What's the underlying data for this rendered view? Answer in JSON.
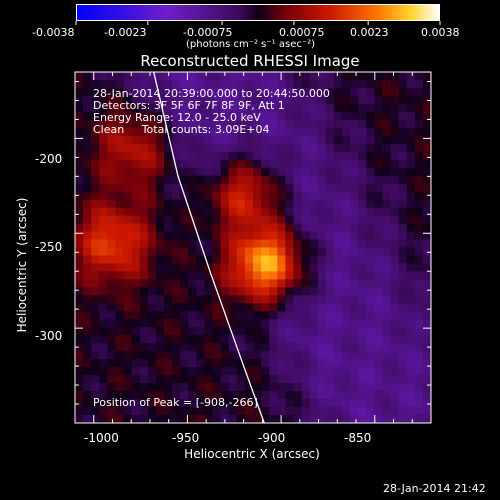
{
  "chart_data": {
    "type": "heatmap",
    "title": "Reconstructed RHESSI Image",
    "xlabel": "Heliocentric X (arcsec)",
    "ylabel": "Heliocentric Y (arcsec)",
    "xlim": [
      -1010,
      -820
    ],
    "ylim": [
      -350,
      -165
    ],
    "x_ticks": [
      -1000,
      -950,
      -900,
      -850
    ],
    "y_ticks": [
      -200,
      -250,
      -300
    ],
    "colorbar": {
      "min": -0.0038,
      "max": 0.0038,
      "ticks": [
        "-0.0038",
        "-0.0023",
        "-0.00075",
        "0.00075",
        "0.0023",
        "0.0038"
      ],
      "units": "(photons cm⁻² s⁻¹ asec⁻²)"
    },
    "info_lines": [
      "28-Jan-2014 20:39:00.000 to 20:44:50.000",
      "Detectors: 3F 5F 6F 7F 8F 9F, Att 1",
      "Energy Range: 12.0 - 25.0 keV",
      "Clean     Total counts: 3.09E+04"
    ],
    "peak_label": "Position of Peak = [-908,-266]",
    "peak": {
      "x": -908,
      "y": -266
    },
    "sources": [
      {
        "x": -908,
        "y": -266,
        "peak": 0.0038
      },
      {
        "x": -920,
        "y": -230,
        "peak": 0.0024
      },
      {
        "x": -990,
        "y": -255,
        "peak": 0.0019
      },
      {
        "x": -978,
        "y": -205,
        "peak": 0.0013
      }
    ],
    "limb_points": [
      [
        -968,
        -165
      ],
      [
        -955,
        -220
      ],
      [
        -938,
        -270
      ],
      [
        -920,
        -320
      ],
      [
        -909,
        -350
      ]
    ],
    "timestamp": "28-Jan-2014 21:42"
  }
}
